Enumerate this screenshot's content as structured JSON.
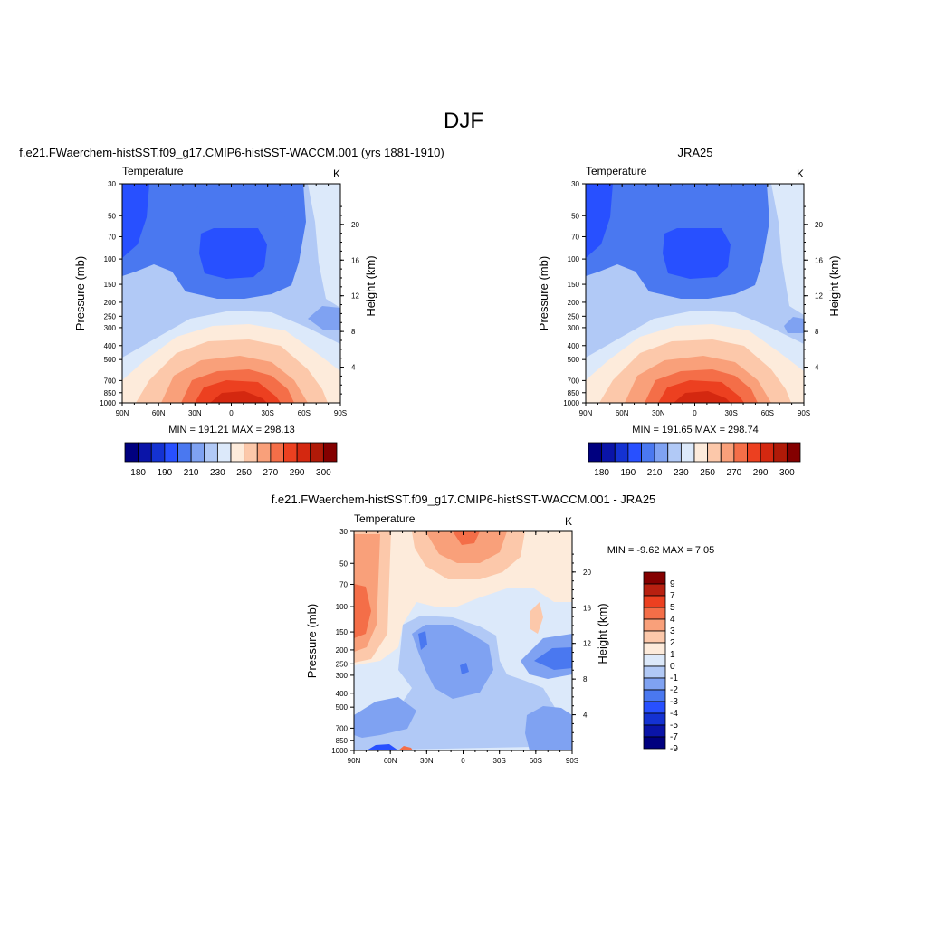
{
  "page": {
    "title": "DJF"
  },
  "colors": {
    "abs_scale": [
      "#00007f",
      "#0a14a8",
      "#1432d2",
      "#2850ff",
      "#4a78f0",
      "#7fa2f2",
      "#b1c9f6",
      "#dce9fa",
      "#fdebdb",
      "#fcc8aa",
      "#f9a07a",
      "#f46e48",
      "#ec4020",
      "#d42810",
      "#b01a08",
      "#840000"
    ],
    "diff_scale": [
      "#00007f",
      "#0a14a8",
      "#1432d2",
      "#2850ff",
      "#4a78f0",
      "#7fa2f2",
      "#b1c9f6",
      "#dce9fa",
      "#fdebdb",
      "#fcc8aa",
      "#f9a07a",
      "#f46e48",
      "#ec4020",
      "#b82010",
      "#840000"
    ]
  },
  "panels": {
    "model": {
      "title": "f.e21.FWaerchem-histSST.f09_g17.CMIP6-histSST-WACCM.001 (yrs 1881-1910)",
      "left_label": "Temperature",
      "right_label": "K",
      "min_max": "MIN = 191.21  MAX = 298.13"
    },
    "obs": {
      "title": "JRA25",
      "left_label": "Temperature",
      "right_label": "K",
      "min_max": "MIN = 191.65  MAX = 298.74"
    },
    "diff": {
      "title": "f.e21.FWaerchem-histSST.f09_g17.CMIP6-histSST-WACCM.001 - JRA25",
      "left_label": "Temperature",
      "right_label": "K",
      "min_max": "MIN =  -9.62  MAX =   7.05"
    }
  },
  "chart_data": [
    {
      "type": "heatmap",
      "name": "model",
      "xlabel": "",
      "ylabel": "Pressure (mb)",
      "y2label": "Height (km)",
      "x_ticks": [
        "90N",
        "60N",
        "30N",
        "0",
        "30S",
        "60S",
        "90S"
      ],
      "p_ticks": [
        30,
        50,
        70,
        100,
        150,
        200,
        250,
        300,
        400,
        500,
        700,
        850,
        1000
      ],
      "height_ticks": [
        4,
        8,
        12,
        16,
        20
      ],
      "yscale": "log",
      "colorbar_labels": [
        "180",
        "190",
        "210",
        "230",
        "250",
        "270",
        "290",
        "300"
      ],
      "min": 191.21,
      "max": 298.13
    },
    {
      "type": "heatmap",
      "name": "obs",
      "xlabel": "",
      "ylabel": "Pressure (mb)",
      "y2label": "Height (km)",
      "x_ticks": [
        "90N",
        "60N",
        "30N",
        "0",
        "30S",
        "60S",
        "90S"
      ],
      "p_ticks": [
        30,
        50,
        70,
        100,
        150,
        200,
        250,
        300,
        400,
        500,
        700,
        850,
        1000
      ],
      "height_ticks": [
        4,
        8,
        12,
        16,
        20
      ],
      "yscale": "log",
      "colorbar_labels": [
        "180",
        "190",
        "210",
        "230",
        "250",
        "270",
        "290",
        "300"
      ],
      "min": 191.65,
      "max": 298.74
    },
    {
      "type": "heatmap",
      "name": "diff",
      "xlabel": "",
      "ylabel": "Pressure (mb)",
      "y2label": "Height (km)",
      "x_ticks": [
        "90N",
        "60N",
        "30N",
        "0",
        "30S",
        "60S",
        "90S"
      ],
      "p_ticks": [
        30,
        50,
        70,
        100,
        150,
        200,
        250,
        300,
        400,
        500,
        700,
        850,
        1000
      ],
      "height_ticks": [
        4,
        8,
        12,
        16,
        20
      ],
      "yscale": "log",
      "colorbar_labels": [
        "9",
        "7",
        "5",
        "4",
        "3",
        "2",
        "1",
        "0",
        "-1",
        "-2",
        "-3",
        "-4",
        "-5",
        "-7",
        "-9"
      ],
      "min": -9.62,
      "max": 7.05
    }
  ]
}
